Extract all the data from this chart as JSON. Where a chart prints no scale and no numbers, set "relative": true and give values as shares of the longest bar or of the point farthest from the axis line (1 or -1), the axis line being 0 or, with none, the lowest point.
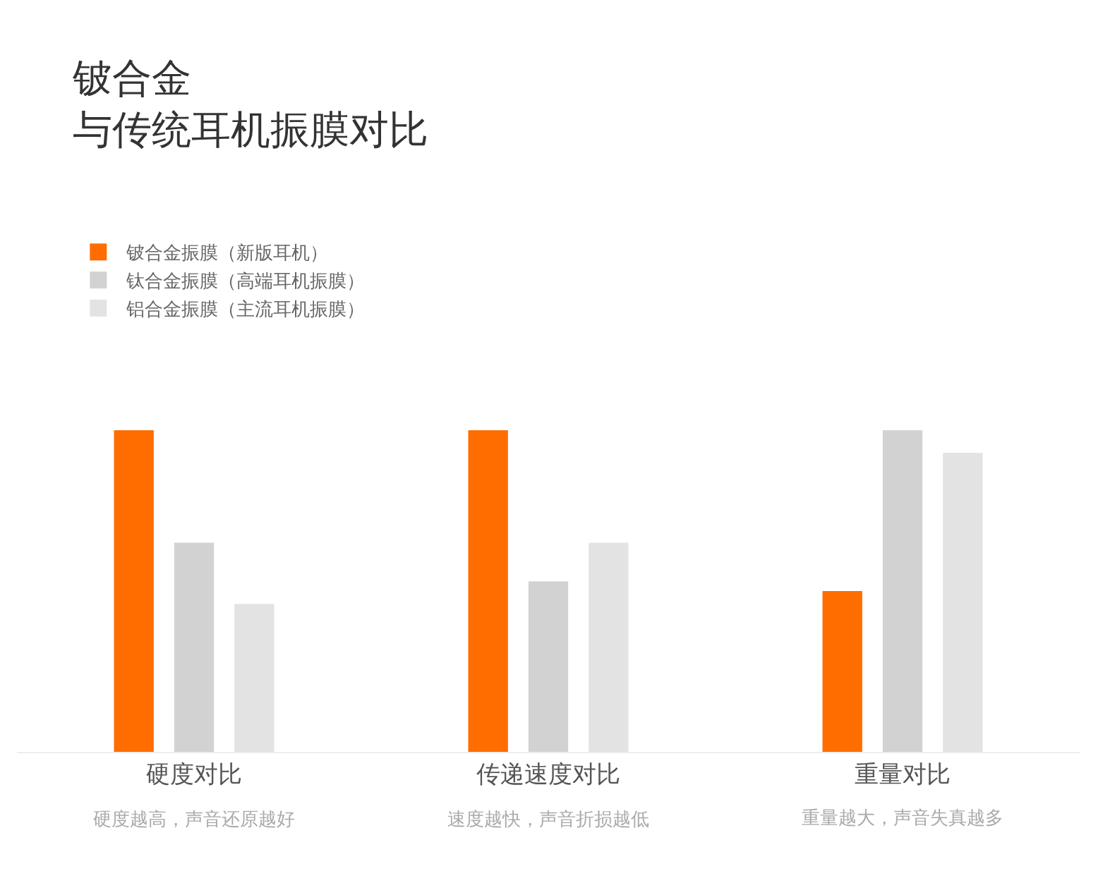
{
  "chart_data": {
    "type": "bar",
    "title": "铍合金",
    "subtitle": "与传统耳机振膜对比",
    "relative": true,
    "legend": "top left",
    "grid": false,
    "categories": [
      "硬度对比",
      "传递速度对比",
      "重量对比"
    ],
    "series": [
      {
        "name": "铍合金振膜（新版耳机）",
        "color": "#ff6d00",
        "values": [
          1,
          1,
          0.5
        ]
      },
      {
        "name": "钛合金振膜（高端耳机振膜）",
        "color": "#d2d2d2",
        "values": [
          0.65,
          0.53,
          1
        ]
      },
      {
        "name": "铝合金振膜（主流耳机振膜）",
        "color": "#e3e3e3",
        "values": [
          0.46,
          0.65,
          0.93
        ]
      }
    ],
    "annotations": [
      "硬度越高，声音还原越好",
      "速度越快，声音折损越低",
      "重量越大，声音失真越多"
    ]
  }
}
